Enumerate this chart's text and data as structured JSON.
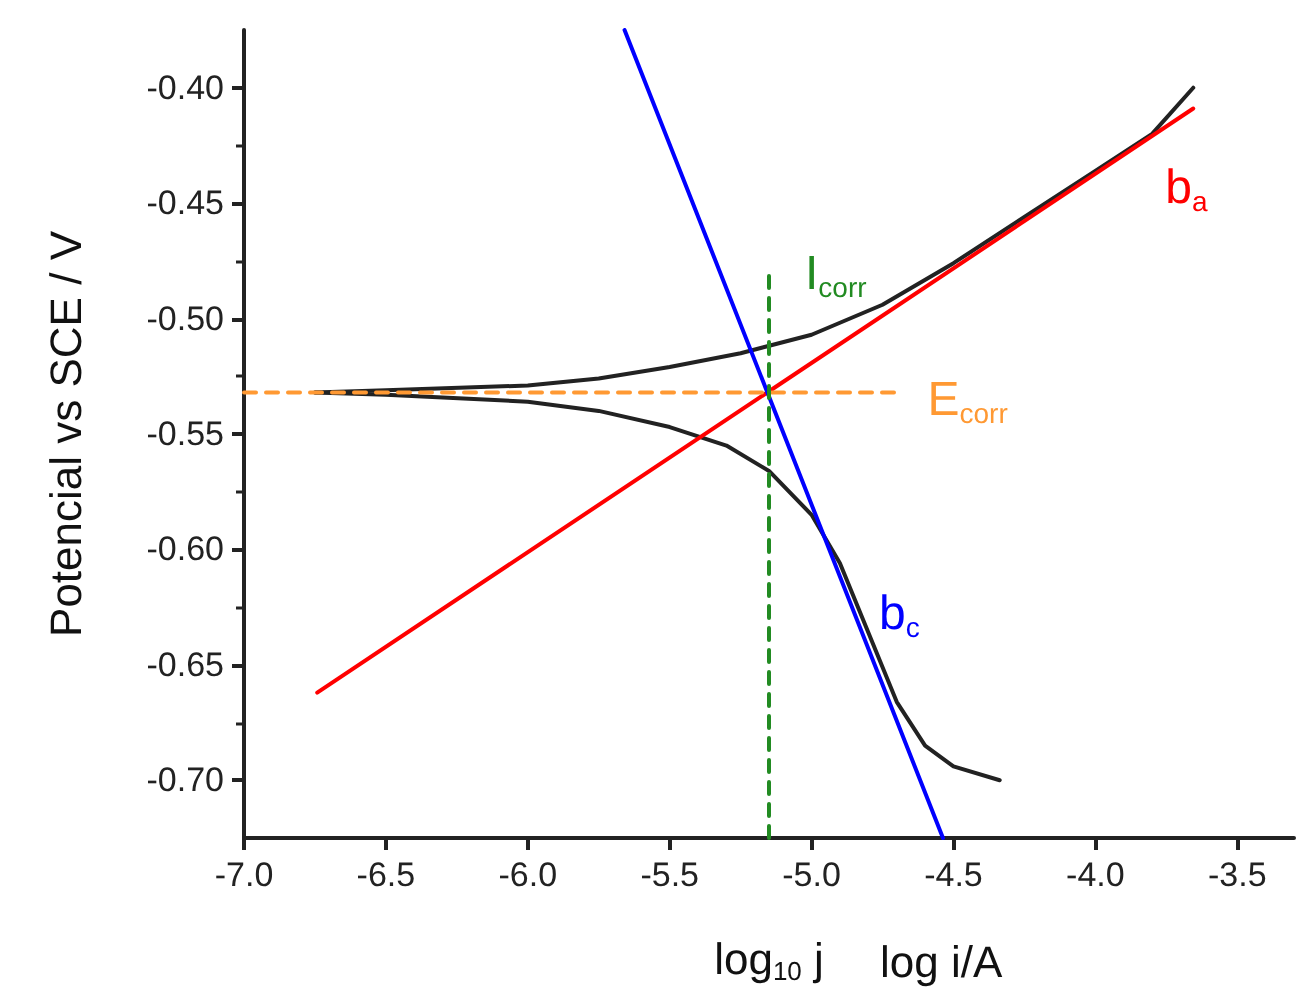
{
  "chart_data": {
    "type": "line",
    "xlabel": "log$_{10}$ j",
    "ylabel": "Potencial vs SCE / V",
    "xlim": [
      -7.0,
      -3.3
    ],
    "ylim": [
      -0.725,
      -0.375
    ],
    "xticks": [
      {
        "value": -7.0,
        "label": "-7.0"
      },
      {
        "value": -6.5,
        "label": "-6.5"
      },
      {
        "value": -6.0,
        "label": "-6.0"
      },
      {
        "value": -5.5,
        "label": "-5.5"
      },
      {
        "value": -5.0,
        "label": "-5.0"
      },
      {
        "value": -4.5,
        "label": "-4.5"
      },
      {
        "value": -4.0,
        "label": "-4.0"
      },
      {
        "value": -3.5,
        "label": "-3.5"
      }
    ],
    "yticks": [
      {
        "value": -0.7,
        "label": "-0.70"
      },
      {
        "value": -0.65,
        "label": "-0.65"
      },
      {
        "value": -0.6,
        "label": "-0.60"
      },
      {
        "value": -0.55,
        "label": "-0.55"
      },
      {
        "value": -0.5,
        "label": "-0.50"
      },
      {
        "value": -0.45,
        "label": "-0.45"
      },
      {
        "value": -0.4,
        "label": "-0.40"
      }
    ],
    "grid": false,
    "legend": false,
    "marker": "none",
    "line_style": "solid",
    "annotations": [
      "log i/A"
    ],
    "series": [
      {
        "color": "#222222",
        "x": [
          -6.75,
          -6.5,
          -6.0,
          -5.75,
          -5.5,
          -5.25,
          -5.0,
          -4.75,
          -4.5,
          -4.25,
          -4.0,
          -3.8,
          -3.655
        ],
        "values": [
          -0.532,
          -0.531,
          -0.529,
          -0.526,
          -0.521,
          -0.515,
          -0.507,
          -0.494,
          -0.476,
          -0.456,
          -0.436,
          -0.42,
          -0.4
        ]
      },
      {
        "color": "#222222",
        "x": [
          -6.75,
          -6.5,
          -6.0,
          -5.75,
          -5.5,
          -5.3,
          -5.15,
          -5.0,
          -4.9,
          -4.8,
          -4.7,
          -4.6,
          -4.5,
          -4.337
        ],
        "values": [
          -0.532,
          -0.533,
          -0.536,
          -0.54,
          -0.547,
          -0.555,
          -0.566,
          -0.585,
          -0.606,
          -0.636,
          -0.666,
          -0.685,
          -0.694,
          -0.7
        ]
      },
      {
        "name": "b$_{a}$",
        "color": "#ff0000",
        "x": [
          -6.742,
          -3.655
        ],
        "values": [
          -0.662,
          -0.409
        ]
      },
      {
        "name": "b$_{c}$",
        "color": "#0000ff",
        "x": [
          -5.659,
          -4.537
        ],
        "values": [
          -0.375,
          -0.725
        ]
      },
      {
        "name": "E$_{corr}$",
        "color": "#ff9933",
        "line_style": "dashed",
        "x": [
          -7.0,
          -4.69
        ],
        "values": [
          -0.532,
          -0.532
        ]
      },
      {
        "name": "I$_{corr}$",
        "color": "#228b22",
        "line_style": "dashed",
        "x": [
          -5.15,
          -5.15
        ],
        "values": [
          -0.725,
          -0.479
        ]
      }
    ]
  }
}
